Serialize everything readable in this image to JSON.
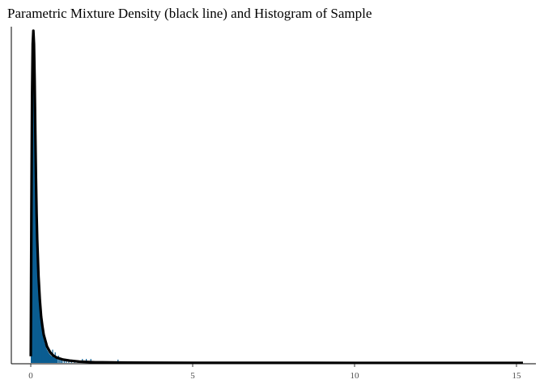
{
  "chart_data": {
    "type": "bar",
    "title": "Parametric Mixture Density (black line) and Histogram of Sample",
    "xlabel": "",
    "ylabel": "",
    "xlim": [
      -0.6,
      15.6
    ],
    "x_ticks": [
      0,
      5,
      10,
      15
    ],
    "y_ticks_shown": false,
    "grid": false,
    "legend": "none",
    "colors": {
      "bars": "#0b5d91",
      "density_line": "#000000",
      "axis": "#000000"
    },
    "histogram": {
      "bin_width": 0.02,
      "bins": [
        {
          "x": 0.01,
          "h": 0.3
        },
        {
          "x": 0.03,
          "h": 0.55
        },
        {
          "x": 0.05,
          "h": 0.85
        },
        {
          "x": 0.07,
          "h": 0.96
        },
        {
          "x": 0.09,
          "h": 1.0
        },
        {
          "x": 0.11,
          "h": 0.93
        },
        {
          "x": 0.13,
          "h": 0.8
        },
        {
          "x": 0.15,
          "h": 0.65
        },
        {
          "x": 0.17,
          "h": 0.52
        },
        {
          "x": 0.19,
          "h": 0.42
        },
        {
          "x": 0.21,
          "h": 0.34
        },
        {
          "x": 0.23,
          "h": 0.28
        },
        {
          "x": 0.25,
          "h": 0.23
        },
        {
          "x": 0.27,
          "h": 0.19
        },
        {
          "x": 0.29,
          "h": 0.16
        },
        {
          "x": 0.31,
          "h": 0.135
        },
        {
          "x": 0.33,
          "h": 0.115
        },
        {
          "x": 0.35,
          "h": 0.1
        },
        {
          "x": 0.37,
          "h": 0.085
        },
        {
          "x": 0.39,
          "h": 0.075
        },
        {
          "x": 0.41,
          "h": 0.066
        },
        {
          "x": 0.43,
          "h": 0.058
        },
        {
          "x": 0.45,
          "h": 0.052
        },
        {
          "x": 0.47,
          "h": 0.046
        },
        {
          "x": 0.49,
          "h": 0.041
        },
        {
          "x": 0.51,
          "h": 0.037
        },
        {
          "x": 0.53,
          "h": 0.033
        },
        {
          "x": 0.55,
          "h": 0.03
        },
        {
          "x": 0.57,
          "h": 0.027
        },
        {
          "x": 0.59,
          "h": 0.025
        },
        {
          "x": 0.61,
          "h": 0.023
        },
        {
          "x": 0.63,
          "h": 0.021
        },
        {
          "x": 0.65,
          "h": 0.02
        },
        {
          "x": 0.67,
          "h": 0.04
        },
        {
          "x": 0.69,
          "h": 0.018
        },
        {
          "x": 0.71,
          "h": 0.016
        },
        {
          "x": 0.73,
          "h": 0.015
        },
        {
          "x": 0.75,
          "h": 0.032
        },
        {
          "x": 0.77,
          "h": 0.014
        },
        {
          "x": 0.79,
          "h": 0.013
        },
        {
          "x": 0.81,
          "h": 0.012
        },
        {
          "x": 0.85,
          "h": 0.022
        },
        {
          "x": 0.89,
          "h": 0.011
        },
        {
          "x": 0.93,
          "h": 0.01
        },
        {
          "x": 0.97,
          "h": 0.009
        },
        {
          "x": 1.03,
          "h": 0.008
        },
        {
          "x": 1.09,
          "h": 0.007
        },
        {
          "x": 1.17,
          "h": 0.006
        },
        {
          "x": 1.25,
          "h": 0.006
        },
        {
          "x": 1.35,
          "h": 0.005
        },
        {
          "x": 1.45,
          "h": 0.005
        },
        {
          "x": 1.59,
          "h": 0.012
        },
        {
          "x": 1.71,
          "h": 0.012
        },
        {
          "x": 1.85,
          "h": 0.012
        },
        {
          "x": 2.69,
          "h": 0.01
        }
      ]
    },
    "density_curve": {
      "x": [
        0.0,
        0.02,
        0.04,
        0.06,
        0.08,
        0.1,
        0.12,
        0.14,
        0.16,
        0.18,
        0.2,
        0.24,
        0.28,
        0.32,
        0.36,
        0.4,
        0.5,
        0.6,
        0.7,
        0.8,
        1.0,
        1.2,
        1.5,
        2.0,
        3.0,
        5.0,
        10.0,
        15.2
      ],
      "y": [
        0.02,
        0.45,
        0.8,
        0.96,
        1.0,
        0.96,
        0.85,
        0.7,
        0.56,
        0.45,
        0.37,
        0.26,
        0.19,
        0.14,
        0.11,
        0.085,
        0.05,
        0.032,
        0.022,
        0.016,
        0.01,
        0.007,
        0.004,
        0.002,
        0.001,
        0.0005,
        0.0002,
        0.0001
      ]
    }
  }
}
